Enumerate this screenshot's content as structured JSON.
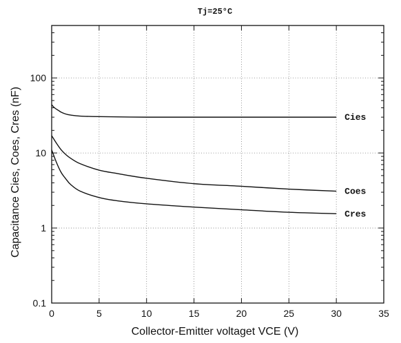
{
  "chart_data": {
    "type": "line",
    "title": "Tj=25°C",
    "xlabel": "Collector-Emitter voltaget   VCE (V)",
    "ylabel": "Capacitance    Cies, Coes, Cres (nF)",
    "xlim": [
      0,
      35
    ],
    "ylim": [
      0.1,
      500
    ],
    "yscale": "log",
    "grid": true,
    "xticks": [
      "0",
      "5",
      "10",
      "15",
      "20",
      "25",
      "30",
      "35"
    ],
    "yticks": [
      "0.1",
      "1",
      "10",
      "100"
    ],
    "ytick_values": [
      0.1,
      1,
      10,
      100
    ],
    "series": [
      {
        "name": "Cies",
        "x": [
          0,
          0.3,
          0.7,
          1,
          1.5,
          2,
          3,
          5,
          10,
          15,
          20,
          25,
          30
        ],
        "y": [
          44,
          40,
          37,
          35,
          33,
          32,
          31,
          30.5,
          30,
          30,
          30,
          30,
          30
        ]
      },
      {
        "name": "Coes",
        "x": [
          0,
          0.5,
          1,
          1.5,
          2,
          3,
          5,
          7,
          10,
          15,
          20,
          25,
          30
        ],
        "y": [
          17,
          13.5,
          11,
          9.5,
          8.5,
          7.2,
          5.9,
          5.3,
          4.6,
          3.9,
          3.6,
          3.3,
          3.1
        ]
      },
      {
        "name": "Cres",
        "x": [
          0,
          0.5,
          1,
          1.5,
          2,
          3,
          5,
          7,
          10,
          15,
          20,
          25,
          30
        ],
        "y": [
          11,
          7.5,
          5.5,
          4.5,
          3.8,
          3.1,
          2.55,
          2.3,
          2.1,
          1.9,
          1.75,
          1.62,
          1.55
        ]
      }
    ]
  }
}
